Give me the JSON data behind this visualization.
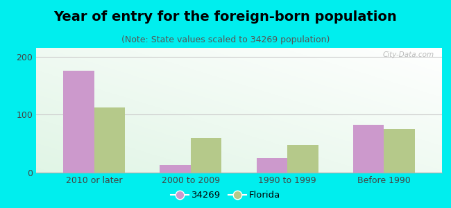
{
  "title": "Year of entry for the foreign-born population",
  "subtitle": "(Note: State values scaled to 34269 population)",
  "categories": [
    "2010 or later",
    "2000 to 2009",
    "1990 to 1999",
    "Before 1990"
  ],
  "values_city": [
    175,
    13,
    25,
    82
  ],
  "values_state": [
    112,
    60,
    48,
    75
  ],
  "color_city": "#cc99cc",
  "color_state": "#b5c98a",
  "legend_city": "34269",
  "legend_state": "Florida",
  "ylim": [
    0,
    215
  ],
  "yticks": [
    0,
    100,
    200
  ],
  "outer_background": "#00eeee",
  "grid_color": "#cccccc",
  "bar_width": 0.32,
  "title_fontsize": 14,
  "subtitle_fontsize": 9,
  "tick_fontsize": 9,
  "watermark_text": "City-Data.com"
}
